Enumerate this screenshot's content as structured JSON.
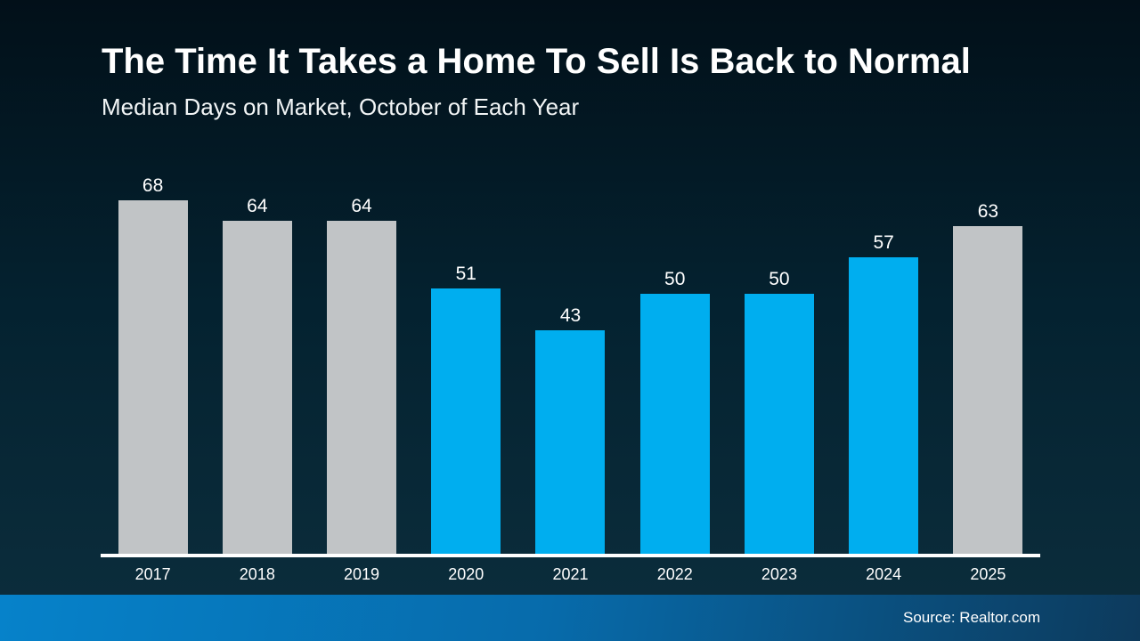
{
  "title": "The Time It Takes a Home To Sell Is Back to Normal",
  "subtitle": "Median Days on Market, October of Each Year",
  "footer": {
    "source_label": "Source: Realtor.com"
  },
  "colors": {
    "background_top": "#021019",
    "background_bottom": "#0c2e3d",
    "bar_gray": "#c1c4c6",
    "bar_blue": "#00aeef",
    "axis_line": "#ffffff",
    "text": "#ffffff",
    "footer_gradient_left": "#0682ca",
    "footer_gradient_right": "#0d3a5c"
  },
  "chart_data": {
    "type": "bar",
    "title": "The Time It Takes a Home To Sell Is Back to Normal",
    "subtitle": "Median Days on Market, October of Each Year",
    "categories": [
      "2017",
      "2018",
      "2019",
      "2020",
      "2021",
      "2022",
      "2023",
      "2024",
      "2025"
    ],
    "values": [
      68,
      64,
      64,
      51,
      43,
      50,
      50,
      57,
      63
    ],
    "bar_colors": [
      "gray",
      "gray",
      "gray",
      "blue",
      "blue",
      "blue",
      "blue",
      "blue",
      "gray"
    ],
    "xlabel": "",
    "ylabel": "Median Days on Market",
    "ylim": [
      0,
      74
    ],
    "grid": false,
    "legend": "none",
    "value_labels": true
  }
}
